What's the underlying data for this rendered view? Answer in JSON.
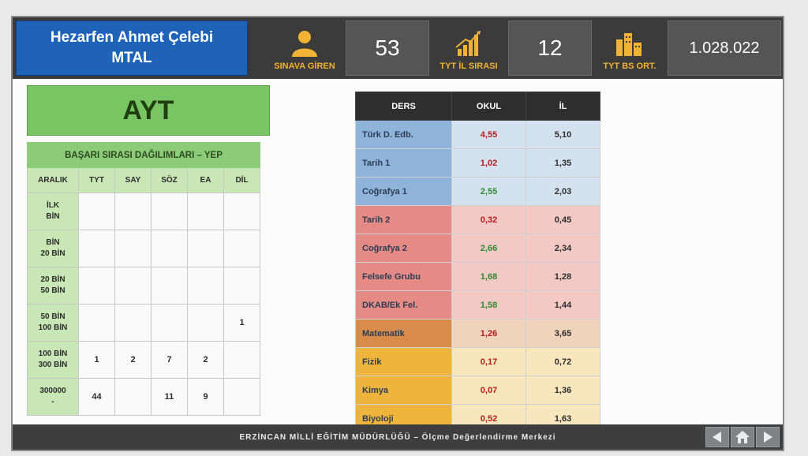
{
  "header": {
    "school_line1": "Hezarfen Ahmet Çelebi",
    "school_line2": "MTAL",
    "metrics": [
      {
        "label": "SINAVA GİREN",
        "value": "53",
        "icon": "person-icon"
      },
      {
        "label": "TYT İL SIRASI",
        "value": "12",
        "icon": "bar-chart-icon"
      },
      {
        "label": "TYT BS ORT.",
        "value": "1.028.022",
        "icon": "chart-building-icon"
      }
    ],
    "accent_color": "#f2b233",
    "school_bg": "#1e63b8"
  },
  "ayt_title": "AYT",
  "distribution": {
    "title": "BAŞARI SIRASI DAĞILIMLARI – YEP",
    "columns": [
      "ARALIK",
      "TYT",
      "SAY",
      "SÖZ",
      "EA",
      "DİL"
    ],
    "rows": [
      {
        "range1": "İLK",
        "range2": "BİN",
        "values": [
          "",
          "",
          "",
          "",
          ""
        ]
      },
      {
        "range1": "BİN",
        "range2": "20 BİN",
        "values": [
          "",
          "",
          "",
          "",
          ""
        ]
      },
      {
        "range1": "20 BİN",
        "range2": "50 BİN",
        "values": [
          "",
          "",
          "",
          "",
          ""
        ]
      },
      {
        "range1": "50 BİN",
        "range2": "100 BİN",
        "values": [
          "",
          "",
          "",
          "",
          "1"
        ]
      },
      {
        "range1": "100 BİN",
        "range2": "300 BİN",
        "values": [
          "1",
          "2",
          "7",
          "2",
          ""
        ]
      },
      {
        "range1": "300000",
        "range2": "-",
        "values": [
          "44",
          "",
          "11",
          "9",
          ""
        ]
      }
    ]
  },
  "scores": {
    "columns": [
      "DERS",
      "OKUL",
      "İL"
    ],
    "rows": [
      {
        "ders": "Türk D. Edb.",
        "okul": "4,55",
        "il": "5,10",
        "okul_color": "#b51e1e",
        "group": "blue"
      },
      {
        "ders": "Tarih 1",
        "okul": "1,02",
        "il": "1,35",
        "okul_color": "#b51e1e",
        "group": "blue"
      },
      {
        "ders": "Coğrafya 1",
        "okul": "2,55",
        "il": "2,03",
        "okul_color": "#2f8a2f",
        "group": "blue"
      },
      {
        "ders": "Tarih 2",
        "okul": "0,32",
        "il": "0,45",
        "okul_color": "#b51e1e",
        "group": "red"
      },
      {
        "ders": "Coğrafya 2",
        "okul": "2,66",
        "il": "2,34",
        "okul_color": "#2f8a2f",
        "group": "red"
      },
      {
        "ders": "Felsefe Grubu",
        "okul": "1,68",
        "il": "1,28",
        "okul_color": "#2f8a2f",
        "group": "red"
      },
      {
        "ders": "DKAB/Ek Fel.",
        "okul": "1,58",
        "il": "1,44",
        "okul_color": "#2f8a2f",
        "group": "red"
      },
      {
        "ders": "Matematik",
        "okul": "1,26",
        "il": "3,65",
        "okul_color": "#b51e1e",
        "group": "orange"
      },
      {
        "ders": "Fizik",
        "okul": "0,17",
        "il": "0,72",
        "okul_color": "#b51e1e",
        "group": "yellow"
      },
      {
        "ders": "Kimya",
        "okul": "0,07",
        "il": "1,36",
        "okul_color": "#b51e1e",
        "group": "yellow"
      },
      {
        "ders": "Biyoloji",
        "okul": "0,52",
        "il": "1,63",
        "okul_color": "#b51e1e",
        "group": "yellow"
      }
    ],
    "group_colors": {
      "blue": {
        "label": "#8fb3d9",
        "cell": "#d4e2f0"
      },
      "red": {
        "label": "#e58a84",
        "cell": "#f3c9c6"
      },
      "orange": {
        "label": "#d98b4a",
        "cell": "#f0d3bb"
      },
      "yellow": {
        "label": "#efb43c",
        "cell": "#f8e7bd"
      }
    }
  },
  "footer": {
    "text": "ERZİNCAN MİLLİ EĞİTİM MÜDÜRLÜĞÜ – Ölçme Değerlendirme Merkezi",
    "nav_icons": [
      "prev-arrow-icon",
      "home-icon",
      "next-arrow-icon"
    ]
  }
}
